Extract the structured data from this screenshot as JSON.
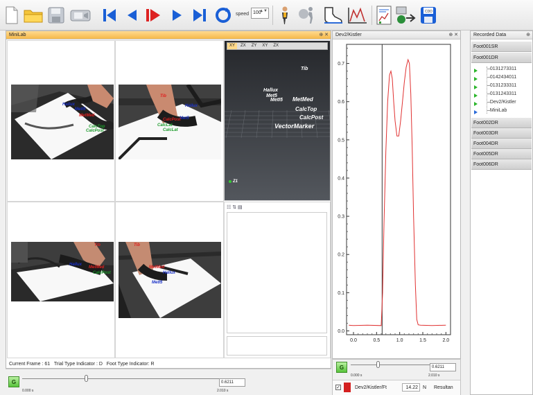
{
  "toolbar": {
    "buttons": [
      {
        "name": "new-icon",
        "color": "#ffffff"
      },
      {
        "name": "open-folder-icon",
        "color": "#f0c030"
      },
      {
        "name": "save-disk-icon",
        "color": "#9aa0a8"
      },
      {
        "name": "camera-icon",
        "color": "#9aa0a8"
      },
      {
        "name": "skip-to-start-icon",
        "color": "#1a5fd6"
      },
      {
        "name": "step-back-icon",
        "color": "#1a5fd6"
      },
      {
        "name": "play-icon",
        "color": "#d22"
      },
      {
        "name": "step-forward-icon",
        "color": "#1a5fd6"
      },
      {
        "name": "skip-to-end-icon",
        "color": "#1a5fd6"
      },
      {
        "name": "loop-icon",
        "color": "#1a5fd6"
      }
    ],
    "speed_label": "speed",
    "speed_value": "100"
  },
  "minilab": {
    "title": "MiniLab",
    "controls": "⊕ ✕",
    "view_tabs": [
      "XY",
      "ZX",
      "ZY",
      "XY",
      "ZX"
    ],
    "markers_3d": [
      {
        "label": "Tib",
        "cls": "w"
      },
      {
        "label": "Hallux",
        "cls": "w"
      },
      {
        "label": "MetMed",
        "cls": "w"
      },
      {
        "label": "MetI5",
        "cls": "w"
      },
      {
        "label": "Met5",
        "cls": "w"
      },
      {
        "label": "CalcTop",
        "cls": "w"
      },
      {
        "label": "CalcPost",
        "cls": "w"
      },
      {
        "label": "VectorMarker",
        "cls": "w"
      },
      {
        "label": "Z1",
        "cls": "w"
      }
    ],
    "photo_markers": {
      "p1": [
        [
          "Hallux",
          "b"
        ],
        [
          "MetI5",
          "b"
        ],
        [
          "MetMed",
          "r"
        ],
        [
          "CalcTop",
          "g"
        ],
        [
          "CalcPost",
          "g"
        ],
        [
          "Tib",
          "r"
        ]
      ],
      "p2": [
        [
          "Tib",
          "r"
        ],
        [
          "Hallux",
          "b"
        ],
        [
          "Met5",
          "b"
        ],
        [
          "CalcPost",
          "r"
        ],
        [
          "CalcLat",
          "g"
        ],
        [
          "CalcLat",
          "g"
        ]
      ],
      "p3": [
        [
          "Tib",
          "r"
        ],
        [
          "Hallux",
          "b"
        ],
        [
          "MetMed",
          "r"
        ],
        [
          "CalcPost",
          "g"
        ]
      ],
      "p4": [
        [
          "Tib",
          "r"
        ],
        [
          "MetMed",
          "r"
        ],
        [
          "Hallux",
          "b"
        ],
        [
          "MetI5",
          "b"
        ]
      ]
    },
    "status": {
      "current_frame_label": "Current Frame :",
      "current_frame": "61",
      "trial_type_label": "Trial Type Indicator :",
      "trial_type": "D",
      "foot_type_label": "Foot Type Indicator:",
      "foot_type": "R"
    },
    "player": {
      "g_label": "G",
      "value": "0.6211",
      "start": "0.000 s",
      "end": "2.010 s",
      "position": 0.31
    }
  },
  "kistler": {
    "title": "Dev2/Kistler",
    "controls": "⊕ ✕",
    "player": {
      "g_label": "G",
      "value": "0.6211",
      "start": "0.000 s",
      "end": "2.010 s",
      "position": 0.31
    },
    "legend": {
      "label": "Dev2/Kistler/Ft",
      "value": "14.22",
      "unit": "N",
      "extra": "Resultan",
      "color": "#d42020"
    }
  },
  "chart_data": {
    "type": "line",
    "title": "",
    "xlabel": "",
    "ylabel": "",
    "xlim": [
      -0.15,
      2.1
    ],
    "ylim": [
      -0.01,
      0.75
    ],
    "xticks": [
      "0.0",
      "0.5",
      "1.0",
      "1.5",
      "2.0"
    ],
    "yticks": [
      "0.0",
      "0.1",
      "0.2",
      "0.3",
      "0.4",
      "0.5",
      "0.6",
      "0.7"
    ],
    "cursor_x": 0.62,
    "series": [
      {
        "color": "#e03030",
        "x": [
          -0.1,
          0.0,
          0.3,
          0.6,
          0.63,
          0.66,
          0.7,
          0.74,
          0.78,
          0.81,
          0.84,
          0.87,
          0.9,
          0.94,
          0.98,
          1.02,
          1.06,
          1.1,
          1.14,
          1.18,
          1.21,
          1.24,
          1.27,
          1.3,
          1.34,
          1.37,
          1.4,
          1.45,
          1.7,
          2.0
        ],
        "y": [
          0.015,
          0.014,
          0.015,
          0.014,
          0.1,
          0.28,
          0.47,
          0.6,
          0.67,
          0.68,
          0.66,
          0.6,
          0.55,
          0.51,
          0.51,
          0.55,
          0.6,
          0.65,
          0.69,
          0.71,
          0.7,
          0.62,
          0.48,
          0.3,
          0.12,
          0.03,
          0.016,
          0.015,
          0.014,
          0.015
        ]
      }
    ]
  },
  "recorded": {
    "title": "Recorded Data",
    "controls": "⊕",
    "groups": [
      "Foot001SR",
      "Foot001DR"
    ],
    "items": [
      "0131273311",
      "0142434011",
      "0131233311",
      "0131243311",
      "Dev2/Kistler",
      "MiniLab"
    ],
    "groups_after": [
      "Foot002DR",
      "Foot003DR",
      "Foot004DR",
      "Foot005DR",
      "Foot006DR"
    ]
  }
}
